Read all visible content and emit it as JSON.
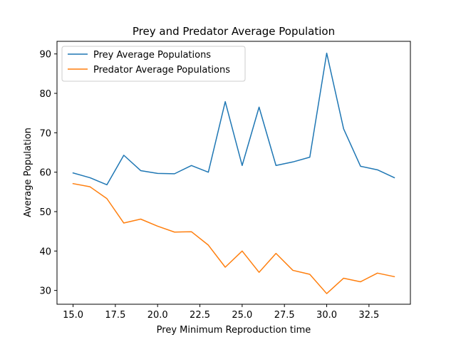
{
  "chart_data": {
    "type": "line",
    "title": "Prey and Predator Average Population",
    "xlabel": "Prey Minimum Reproduction time",
    "ylabel": "Average Population",
    "x": [
      15,
      16,
      17,
      18,
      19,
      20,
      21,
      22,
      23,
      24,
      25,
      26,
      27,
      28,
      29,
      30,
      31,
      32,
      33,
      34
    ],
    "xlim": [
      14.05,
      34.95
    ],
    "ylim": [
      26.5,
      93.2
    ],
    "xticks": [
      "15.0",
      "17.5",
      "20.0",
      "22.5",
      "25.0",
      "27.5",
      "30.0",
      "32.5"
    ],
    "yticks": [
      "30",
      "40",
      "50",
      "60",
      "70",
      "80",
      "90"
    ],
    "grid": false,
    "legend_position": "upper-left",
    "series": [
      {
        "name": "Prey Average Populations",
        "color": "#1f77b4",
        "values": [
          59.8,
          58.6,
          56.8,
          64.3,
          60.4,
          59.7,
          59.6,
          61.7,
          60.0,
          77.9,
          61.7,
          76.5,
          61.7,
          62.6,
          63.8,
          90.2,
          71.0,
          61.5,
          60.6,
          58.6
        ]
      },
      {
        "name": "Predator Average Populations",
        "color": "#ff7f0e",
        "values": [
          57.1,
          56.3,
          53.3,
          47.1,
          48.1,
          46.3,
          44.8,
          44.9,
          41.5,
          35.9,
          40.0,
          34.6,
          39.4,
          35.1,
          34.1,
          29.2,
          33.1,
          32.2,
          34.4,
          33.5
        ]
      }
    ]
  }
}
